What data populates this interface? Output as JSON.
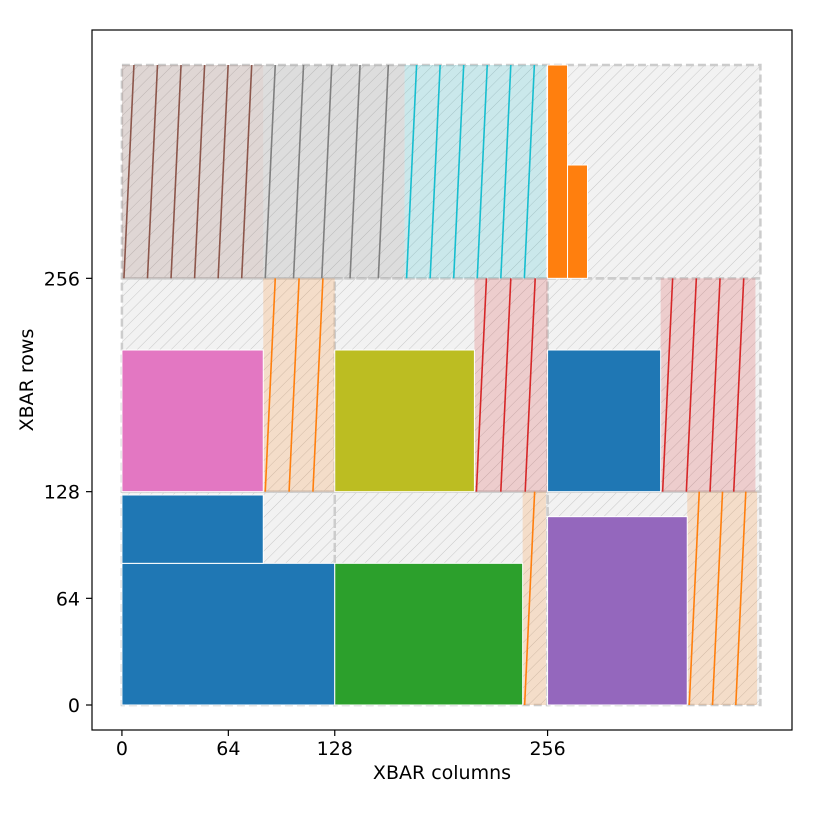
{
  "chart_data": {
    "type": "xbar-allocation",
    "xlabel": "XBAR columns",
    "ylabel": "XBAR rows",
    "xticks": [
      0,
      64,
      128,
      256
    ],
    "yticks": [
      0,
      64,
      128,
      256
    ],
    "xlim": [
      -18,
      403
    ],
    "ylim": [
      -15,
      405
    ],
    "colors": {
      "tile_fill": "#f2f2f2",
      "tile_edge": "#cccccc",
      "tile_hatch": "#c8c8c8",
      "blue": "#1f77b4",
      "orange": "#ff7f0e",
      "green": "#2ca02c",
      "red": "#d62728",
      "purple": "#9467bd",
      "brown": "#8c564b",
      "pink": "#e377c2",
      "gray": "#7f7f7f",
      "olive": "#bcbd22",
      "cyan": "#17becf"
    },
    "tiles": [
      {
        "x": 0,
        "y": 0,
        "w": 128,
        "h": 128
      },
      {
        "x": 128,
        "y": 0,
        "w": 128,
        "h": 128
      },
      {
        "x": 256,
        "y": 0,
        "w": 128,
        "h": 128
      },
      {
        "x": 0,
        "y": 128,
        "w": 128,
        "h": 128
      },
      {
        "x": 128,
        "y": 128,
        "w": 128,
        "h": 128
      },
      {
        "x": 256,
        "y": 128,
        "w": 128,
        "h": 128
      },
      {
        "x": 0,
        "y": 256,
        "w": 384,
        "h": 128
      }
    ],
    "solid_blocks": [
      {
        "x": 0,
        "y": 0,
        "w": 128,
        "h": 85,
        "color": "blue"
      },
      {
        "x": 0,
        "y": 85,
        "w": 85,
        "h": 41,
        "color": "blue"
      },
      {
        "x": 128,
        "y": 0,
        "w": 113,
        "h": 85,
        "color": "green"
      },
      {
        "x": 256,
        "y": 0,
        "w": 84,
        "h": 113,
        "color": "purple"
      },
      {
        "x": 0,
        "y": 128,
        "w": 85,
        "h": 85,
        "color": "pink"
      },
      {
        "x": 128,
        "y": 128,
        "w": 84,
        "h": 85,
        "color": "olive"
      },
      {
        "x": 256,
        "y": 128,
        "w": 68,
        "h": 85,
        "color": "blue"
      },
      {
        "x": 256,
        "y": 256,
        "w": 12,
        "h": 128,
        "color": "orange"
      },
      {
        "x": 268,
        "y": 256,
        "w": 12,
        "h": 68,
        "color": "orange"
      }
    ],
    "striped_blocks": [
      {
        "x": 340,
        "y": 0,
        "w": 42,
        "h": 128,
        "color": "orange",
        "lines": 3
      },
      {
        "x": 241,
        "y": 0,
        "w": 14,
        "h": 128,
        "color": "orange",
        "lines": 1
      },
      {
        "x": 85,
        "y": 128,
        "w": 43,
        "h": 128,
        "color": "orange",
        "lines": 3
      },
      {
        "x": 212,
        "y": 128,
        "w": 44,
        "h": 128,
        "color": "red",
        "lines": 3
      },
      {
        "x": 324,
        "y": 128,
        "w": 57,
        "h": 128,
        "color": "red",
        "lines": 4
      },
      {
        "x": 0,
        "y": 256,
        "w": 85,
        "h": 128,
        "color": "brown",
        "lines": 6
      },
      {
        "x": 85,
        "y": 256,
        "w": 85,
        "h": 128,
        "color": "gray",
        "lines": 5
      },
      {
        "x": 170,
        "y": 256,
        "w": 85,
        "h": 128,
        "color": "cyan",
        "lines": 6
      }
    ]
  }
}
